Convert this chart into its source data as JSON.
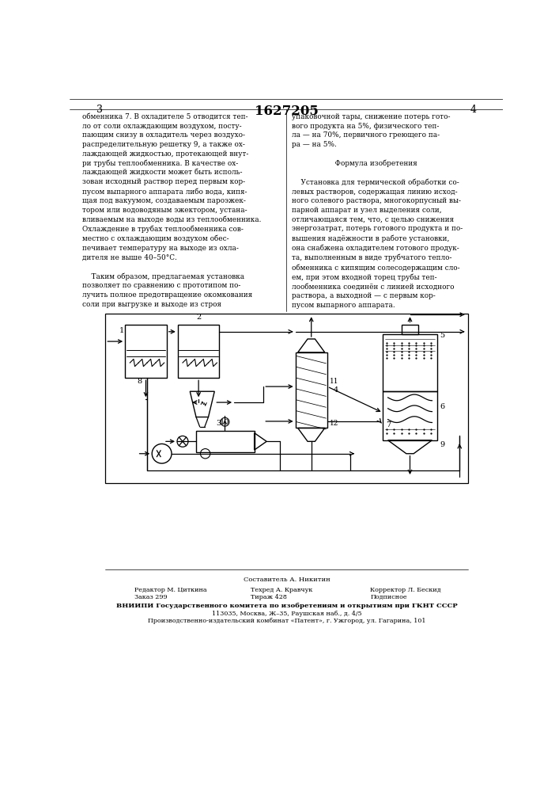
{
  "page_number_left": "3",
  "page_number_center": "1627205",
  "page_number_right": "4",
  "text_left": "обменника 7. В охладителе 5 отводится теп-\nло от соли охлаждающим воздухом, посту-\nпающим снизу в охладитель через воздухо-\nраспределительную решетку 9, а также ох-\nлаждающей жидкостью, протекающей внут-\nри трубы теплообменника. В качестве ох-\nлаждающей жидкости может быть исполь-\nзован исходный раствор перед первым кор-\nпусом выпарного аппарата либо вода, кипя-\nщая под вакуумом, создаваемым пароэжек-\nтором или водоводяным эжектором, устана-\nвливаемым на выходе воды из теплообменника.\nОхлаждение в трубах теплообменника сов-\nместно с охлаждающим воздухом обес-\nпечивает температуру на выходе из охла-\nдителя не выше 40–50°С.\n\n    Таким образом, предлагаемая установка\nпозволяет по сравнению с прототипом по-\nлучить полное предотвращение окомкования\nсоли при выгрузке и выходе из строя",
  "text_right": "упаковочной тары, снижение потерь гото-\nвого продукта на 5%, физического теп-\nла — на 70%, первичного греющего па-\nра — на 5%.\n\n                   Формула изобретения\n\n    Установка для термической обработки со-\nлевых растворов, содержащая линию исход-\nного солевого раствора, многокорпусный вы-\nпарной аппарат и узел выделения соли,\nотличающаяся тем, что, с целью снижения\nэнергозатрат, потерь готового продукта и по-\nвышения надёжности в работе установки,\nона снабжена охладителем готового продук-\nта, выполненным в виде трубчатого тепло-\nобменника с кипящим солесодержащим сло-\nем, при этом входной торец трубы теп-\nлообменника соединён с линией исходного\nраствора, а выходной — с первым кор-\nпусом выпарного аппарата.",
  "footer_line1": "Составитель А. Никитин",
  "footer_line2_left": "Редактор М. Циткина",
  "footer_line2_center": "Техред А. Кравчук",
  "footer_line2_right": "Корректор Л. Бескид",
  "footer_line3_left": "Заказ 299",
  "footer_line3_center": "Тираж 428",
  "footer_line3_right": "Подписное",
  "footer_line4": "ВНИИПИ Государственного комитета по изобретениям и открытиям при ГКНТ СССР",
  "footer_line5": "113035, Москва, Ж–35, Раушская наб., д. 4/5",
  "footer_line6": "Производственно-издательский комбинат «Патент», г. Ужгород, ул. Гагарина, 101",
  "bg_color": "#ffffff",
  "text_color": "#000000"
}
